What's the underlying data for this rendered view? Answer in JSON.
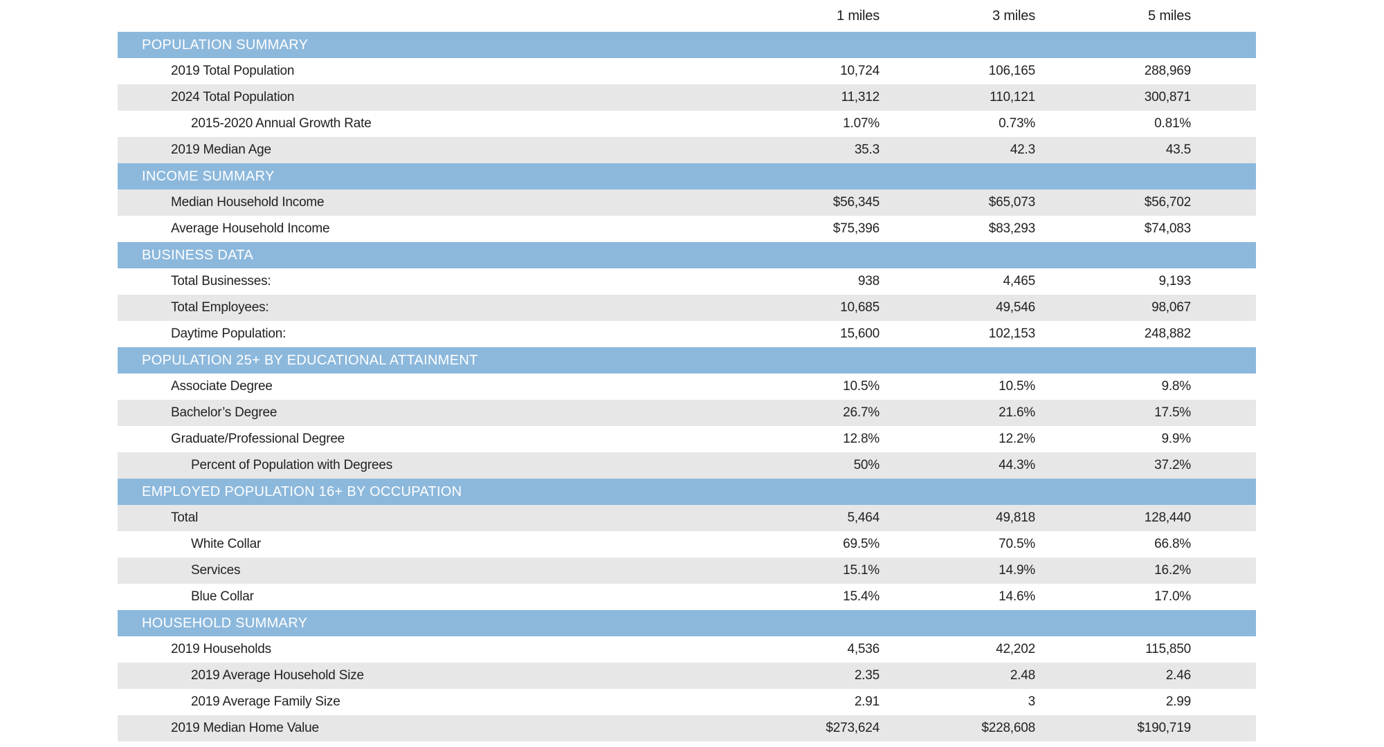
{
  "columns": [
    "1 miles",
    "3 miles",
    "5 miles"
  ],
  "colors": {
    "section_bar_bg": "#8CB8DC",
    "section_bar_text": "#FFFFFF",
    "shaded_row_bg": "#E7E7E7",
    "body_text": "#232020"
  },
  "sections": [
    {
      "title": "POPULATION SUMMARY",
      "rows": [
        {
          "label": "2019 Total Population",
          "indent": 1,
          "shaded": false,
          "values": [
            "10,724",
            "106,165",
            "288,969"
          ]
        },
        {
          "label": "2024 Total Population",
          "indent": 1,
          "shaded": true,
          "values": [
            "11,312",
            "110,121",
            "300,871"
          ]
        },
        {
          "label": "2015-2020 Annual Growth Rate",
          "indent": 2,
          "shaded": false,
          "values": [
            "1.07%",
            "0.73%",
            "0.81%"
          ]
        },
        {
          "label": "2019 Median Age",
          "indent": 1,
          "shaded": true,
          "values": [
            "35.3",
            "42.3",
            "43.5"
          ]
        }
      ]
    },
    {
      "title": "INCOME SUMMARY",
      "rows": [
        {
          "label": "Median Household Income",
          "indent": 1,
          "shaded": true,
          "values": [
            "$56,345",
            "$65,073",
            "$56,702"
          ]
        },
        {
          "label": "Average Household Income",
          "indent": 1,
          "shaded": false,
          "values": [
            "$75,396",
            "$83,293",
            "$74,083"
          ]
        }
      ]
    },
    {
      "title": "BUSINESS DATA",
      "rows": [
        {
          "label": "Total Businesses:",
          "indent": 1,
          "shaded": false,
          "values": [
            "938",
            "4,465",
            "9,193"
          ]
        },
        {
          "label": "Total Employees:",
          "indent": 1,
          "shaded": true,
          "values": [
            "10,685",
            "49,546",
            "98,067"
          ]
        },
        {
          "label": "Daytime Population:",
          "indent": 1,
          "shaded": false,
          "values": [
            "15,600",
            "102,153",
            "248,882"
          ]
        }
      ]
    },
    {
      "title": "POPULATION 25+ BY EDUCATIONAL ATTAINMENT",
      "rows": [
        {
          "label": "Associate Degree",
          "indent": 1,
          "shaded": false,
          "values": [
            "10.5%",
            "10.5%",
            "9.8%"
          ]
        },
        {
          "label": "Bachelor’s Degree",
          "indent": 1,
          "shaded": true,
          "values": [
            "26.7%",
            "21.6%",
            "17.5%"
          ]
        },
        {
          "label": "Graduate/Professional Degree",
          "indent": 1,
          "shaded": false,
          "values": [
            "12.8%",
            "12.2%",
            "9.9%"
          ]
        },
        {
          "label": "Percent of Population with Degrees",
          "indent": 2,
          "shaded": true,
          "values": [
            "50%",
            "44.3%",
            "37.2%"
          ]
        }
      ]
    },
    {
      "title": "EMPLOYED POPULATION 16+ BY OCCUPATION",
      "rows": [
        {
          "label": "Total",
          "indent": 1,
          "shaded": true,
          "values": [
            "5,464",
            "49,818",
            "128,440"
          ]
        },
        {
          "label": "White Collar",
          "indent": 2,
          "shaded": false,
          "values": [
            "69.5%",
            "70.5%",
            "66.8%"
          ]
        },
        {
          "label": "Services",
          "indent": 2,
          "shaded": true,
          "values": [
            "15.1%",
            "14.9%",
            "16.2%"
          ]
        },
        {
          "label": "Blue Collar",
          "indent": 2,
          "shaded": false,
          "values": [
            "15.4%",
            "14.6%",
            "17.0%"
          ]
        }
      ]
    },
    {
      "title": "HOUSEHOLD SUMMARY",
      "rows": [
        {
          "label": "2019 Households",
          "indent": 1,
          "shaded": false,
          "values": [
            "4,536",
            "42,202",
            "115,850"
          ]
        },
        {
          "label": "2019 Average Household Size",
          "indent": 2,
          "shaded": true,
          "values": [
            "2.35",
            "2.48",
            "2.46"
          ]
        },
        {
          "label": "2019 Average Family Size",
          "indent": 2,
          "shaded": false,
          "values": [
            "2.91",
            "3",
            "2.99"
          ]
        },
        {
          "label": "2019 Median Home Value",
          "indent": 1,
          "shaded": true,
          "values": [
            "$273,624",
            "$228,608",
            "$190,719"
          ]
        }
      ]
    }
  ]
}
